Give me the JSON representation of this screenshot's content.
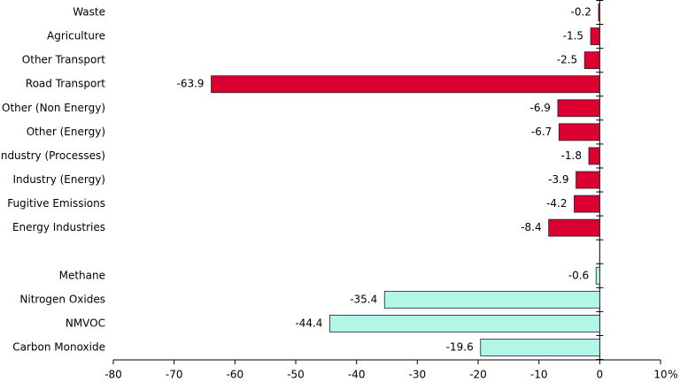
{
  "chart_data": {
    "type": "hbar",
    "categories": [
      "Waste",
      "Agriculture",
      "Other Transport",
      "Road Transport",
      "Other (Non Energy)",
      "Other (Energy)",
      "Industry (Processes)",
      "Industry (Energy)",
      "Fugitive Emissions",
      "Energy Industries",
      null,
      "Methane",
      "Nitrogen Oxides",
      "NMVOC",
      "Carbon Monoxide"
    ],
    "values": [
      -0.2,
      -1.5,
      -2.5,
      -63.9,
      -6.9,
      -6.7,
      -1.8,
      -3.9,
      -4.2,
      -8.4,
      null,
      -0.6,
      -35.4,
      -44.4,
      -19.6
    ],
    "colors": [
      "#dc0032",
      "#dc0032",
      "#dc0032",
      "#dc0032",
      "#dc0032",
      "#dc0032",
      "#dc0032",
      "#dc0032",
      "#dc0032",
      "#dc0032",
      null,
      "#b0f7e8",
      "#b0f7e8",
      "#b0f7e8",
      "#b0f7e8"
    ],
    "xlim": [
      -80,
      10
    ],
    "xticks": [
      -80,
      -70,
      -60,
      -50,
      -40,
      -30,
      -20,
      -10,
      0,
      10
    ],
    "x_unit": "%"
  }
}
